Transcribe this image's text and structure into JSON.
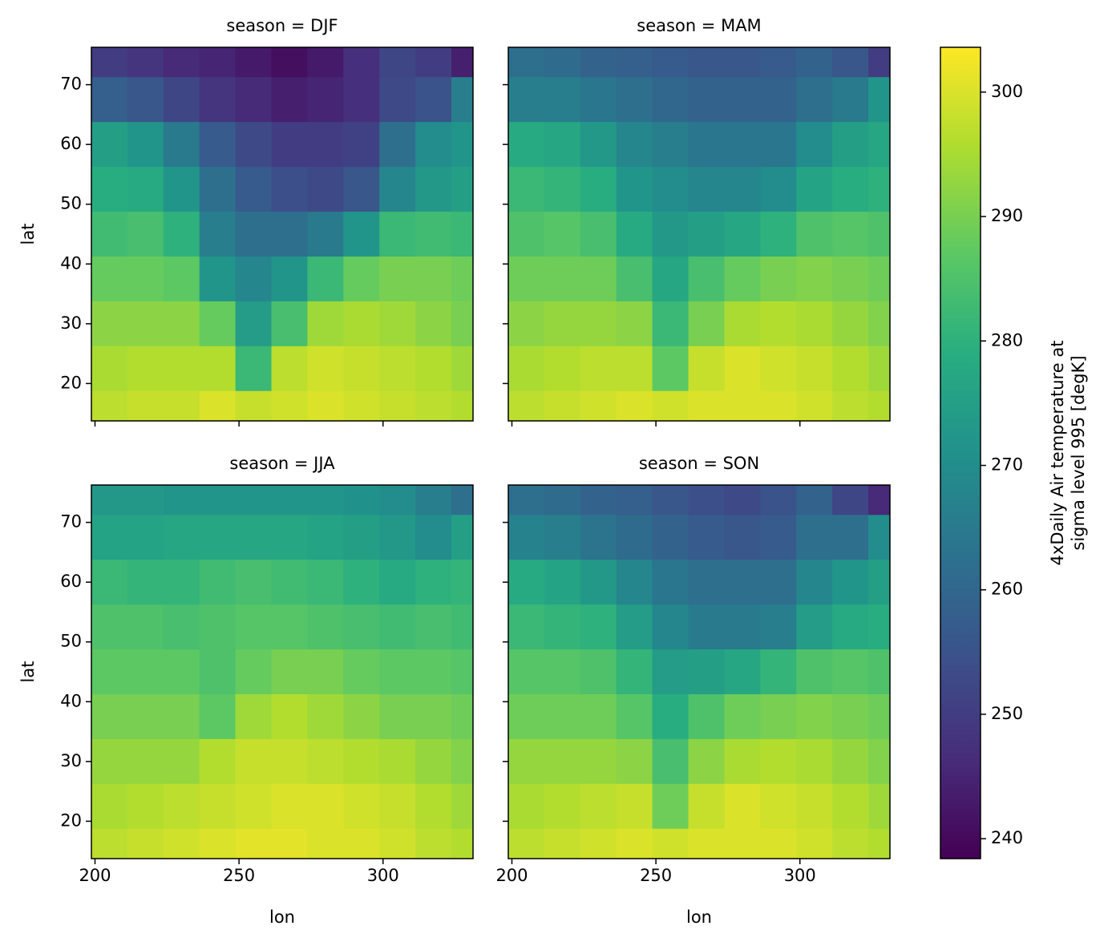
{
  "chart_data": {
    "type": "heatmap",
    "colormap": "viridis",
    "xlabel": "lon",
    "ylabel": "lat",
    "x": [
      205,
      217.5,
      230,
      242.5,
      255,
      267.5,
      280,
      292.5,
      305,
      317.5,
      330
    ],
    "y": [
      75,
      67.5,
      60,
      52.5,
      45,
      37.5,
      30,
      22.5,
      15
    ],
    "xlim": [
      198.75,
      331.25
    ],
    "ylim": [
      13.75,
      76.25
    ],
    "xticks": [
      200,
      250,
      300
    ],
    "yticks": [
      20,
      30,
      40,
      50,
      60,
      70
    ],
    "colorbar": {
      "label": [
        "4xDaily Air temperature at",
        "sigma level 995 [degK]"
      ],
      "lim": [
        238.4,
        303.6
      ],
      "ticks": [
        240,
        250,
        260,
        270,
        280,
        290,
        300
      ]
    },
    "panels": [
      {
        "title": "season = DJF",
        "values": [
          [
            250,
            248,
            246,
            245,
            243,
            241,
            243,
            247,
            252,
            250,
            244
          ],
          [
            258,
            256,
            252,
            248,
            246,
            244,
            245,
            247,
            253,
            255,
            266
          ],
          [
            275,
            272,
            265,
            257,
            253,
            250,
            250,
            251,
            262,
            270,
            272
          ],
          [
            279,
            278,
            272,
            262,
            257,
            254,
            253,
            256,
            268,
            273,
            275
          ],
          [
            283,
            284,
            280,
            266,
            262,
            262,
            265,
            272,
            282,
            283,
            282
          ],
          [
            288,
            288,
            287,
            272,
            268,
            272,
            282,
            288,
            290,
            290,
            289
          ],
          [
            292,
            292,
            292,
            288,
            274,
            284,
            294,
            295,
            294,
            292,
            290
          ],
          [
            295,
            296,
            296,
            296,
            282,
            297,
            299,
            298,
            297,
            296,
            294
          ],
          [
            297,
            298,
            298,
            300,
            298,
            299,
            300,
            299,
            298,
            297,
            296
          ]
        ]
      },
      {
        "title": "season = MAM",
        "values": [
          [
            262,
            261,
            259,
            258,
            257,
            256,
            256,
            257,
            259,
            256,
            250
          ],
          [
            266,
            266,
            264,
            262,
            260,
            259,
            259,
            259,
            262,
            265,
            272
          ],
          [
            278,
            277,
            273,
            268,
            266,
            264,
            264,
            264,
            270,
            275,
            277
          ],
          [
            282,
            281,
            279,
            272,
            270,
            268,
            268,
            270,
            276,
            279,
            280
          ],
          [
            285,
            286,
            284,
            278,
            273,
            275,
            277,
            280,
            285,
            286,
            285
          ],
          [
            289,
            289,
            289,
            284,
            277,
            284,
            288,
            290,
            291,
            290,
            289
          ],
          [
            292,
            293,
            293,
            292,
            282,
            290,
            295,
            296,
            295,
            293,
            291
          ],
          [
            295,
            296,
            297,
            297,
            287,
            298,
            300,
            299,
            298,
            296,
            294
          ],
          [
            297,
            298,
            299,
            300,
            299,
            300,
            300,
            300,
            299,
            297,
            296
          ]
        ]
      },
      {
        "title": "season = JJA",
        "values": [
          [
            273,
            273,
            272,
            272,
            272,
            272,
            272,
            271,
            270,
            266,
            262
          ],
          [
            276,
            276,
            277,
            277,
            277,
            277,
            276,
            275,
            273,
            270,
            275
          ],
          [
            282,
            281,
            281,
            283,
            284,
            283,
            282,
            280,
            278,
            280,
            281
          ],
          [
            285,
            285,
            284,
            285,
            286,
            286,
            285,
            284,
            283,
            284,
            283
          ],
          [
            287,
            287,
            287,
            285,
            288,
            290,
            290,
            288,
            287,
            287,
            286
          ],
          [
            290,
            290,
            290,
            287,
            294,
            296,
            294,
            292,
            290,
            290,
            289
          ],
          [
            293,
            293,
            293,
            296,
            298,
            298,
            297,
            296,
            295,
            293,
            291
          ],
          [
            295,
            296,
            297,
            298,
            299,
            300,
            300,
            299,
            298,
            296,
            294
          ],
          [
            297,
            298,
            299,
            300,
            301,
            301,
            300,
            300,
            299,
            297,
            296
          ]
        ]
      },
      {
        "title": "season = SON",
        "values": [
          [
            262,
            261,
            259,
            258,
            256,
            254,
            253,
            255,
            259,
            252,
            246
          ],
          [
            267,
            266,
            263,
            261,
            259,
            257,
            256,
            257,
            262,
            262,
            270
          ],
          [
            278,
            276,
            273,
            268,
            264,
            262,
            262,
            262,
            268,
            272,
            275
          ],
          [
            282,
            281,
            280,
            274,
            268,
            265,
            265,
            266,
            274,
            278,
            279
          ],
          [
            286,
            286,
            285,
            281,
            274,
            275,
            277,
            281,
            285,
            286,
            285
          ],
          [
            289,
            289,
            289,
            286,
            279,
            285,
            289,
            290,
            291,
            290,
            289
          ],
          [
            293,
            293,
            293,
            292,
            284,
            292,
            295,
            296,
            295,
            293,
            291
          ],
          [
            295,
            296,
            297,
            298,
            289,
            298,
            300,
            299,
            298,
            296,
            294
          ],
          [
            297,
            298,
            299,
            300,
            299,
            300,
            300,
            300,
            299,
            297,
            296
          ]
        ]
      }
    ]
  }
}
